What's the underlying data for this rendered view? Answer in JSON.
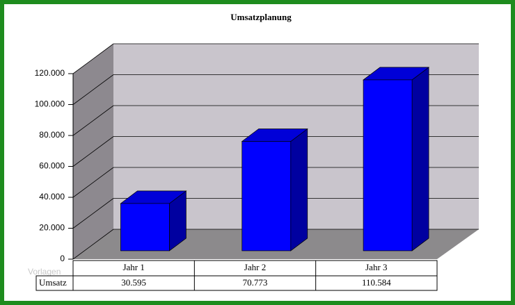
{
  "chart_data": {
    "type": "bar3d",
    "title": "Umsatzplanung",
    "categories": [
      "Jahr 1",
      "Jahr 2",
      "Jahr 3"
    ],
    "series": [
      {
        "name": "Umsatz",
        "color": "#0000ff",
        "values": [
          30595,
          70773,
          110584
        ],
        "value_labels": [
          "30.595",
          "70.773",
          "110.584"
        ]
      }
    ],
    "ylim": [
      0,
      120000
    ],
    "yticks": [
      0,
      {
        "value": 20000,
        "label": "20.000"
      },
      {
        "value": 40000,
        "label": "40.000"
      },
      {
        "value": 60000,
        "label": "60.000"
      },
      {
        "value": 80000,
        "label": "80.000"
      },
      {
        "value": 100000,
        "label": "100.000"
      },
      {
        "value": 120000,
        "label": "120.000"
      }
    ],
    "grid": true,
    "watermark": "Vorlagen"
  }
}
